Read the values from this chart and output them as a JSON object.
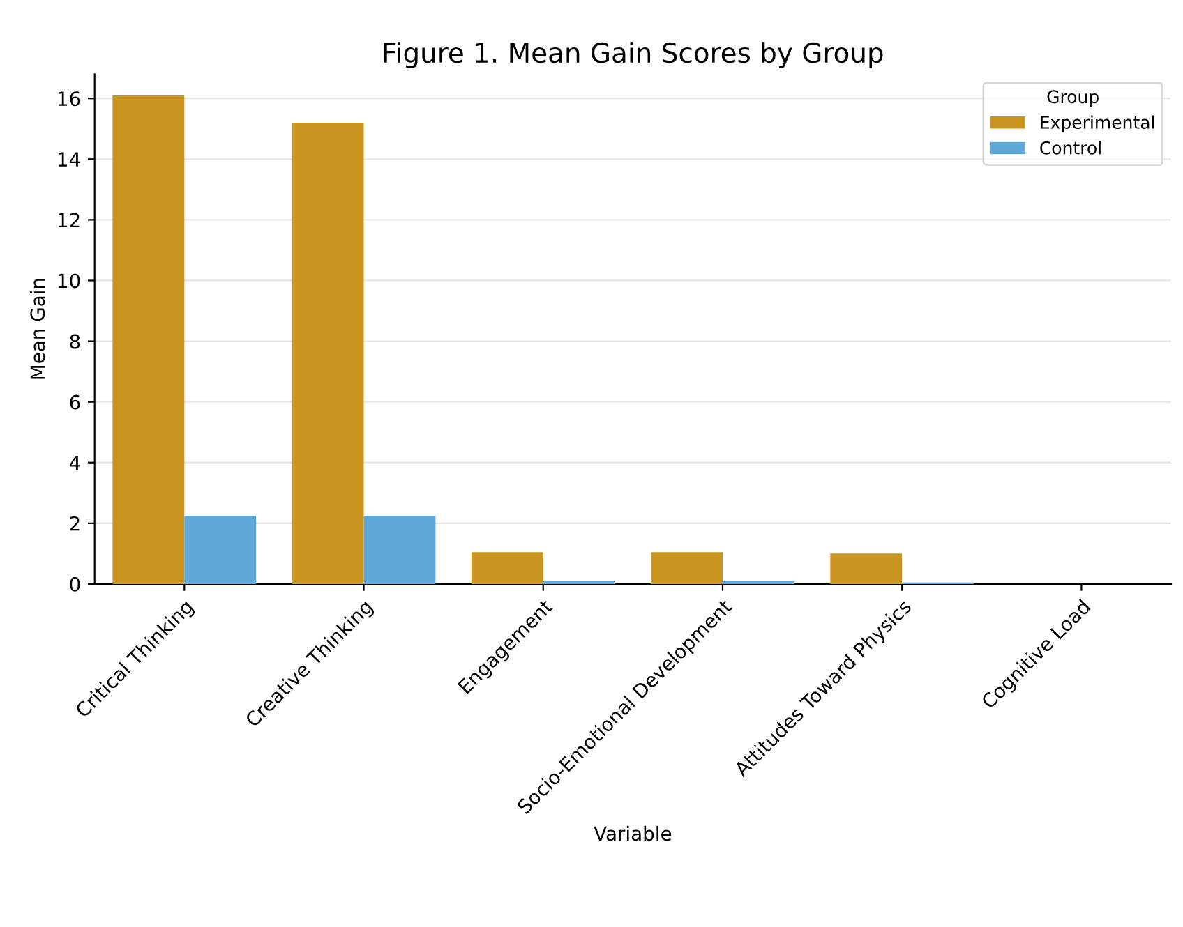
{
  "chart_data": {
    "type": "bar",
    "title": "Figure 1. Mean Gain Scores by Group",
    "xlabel": "Variable",
    "ylabel": "Mean Gain",
    "legend_title": "Group",
    "categories": [
      "Critical Thinking",
      "Creative Thinking",
      "Engagement",
      "Socio-Emotional Development",
      "Attitudes Toward Physics",
      "Cognitive Load"
    ],
    "series": [
      {
        "name": "Experimental",
        "color": "#c9941f",
        "values": [
          16.1,
          15.2,
          1.05,
          1.05,
          1.0,
          0
        ]
      },
      {
        "name": "Control",
        "color": "#5fa9d8",
        "values": [
          2.25,
          2.25,
          0.1,
          0.1,
          0.05,
          0
        ]
      }
    ],
    "ylim": [
      0,
      16.8
    ],
    "yticks": [
      0,
      2,
      4,
      6,
      8,
      10,
      12,
      14,
      16
    ],
    "grid": "y",
    "legend": "top right"
  }
}
